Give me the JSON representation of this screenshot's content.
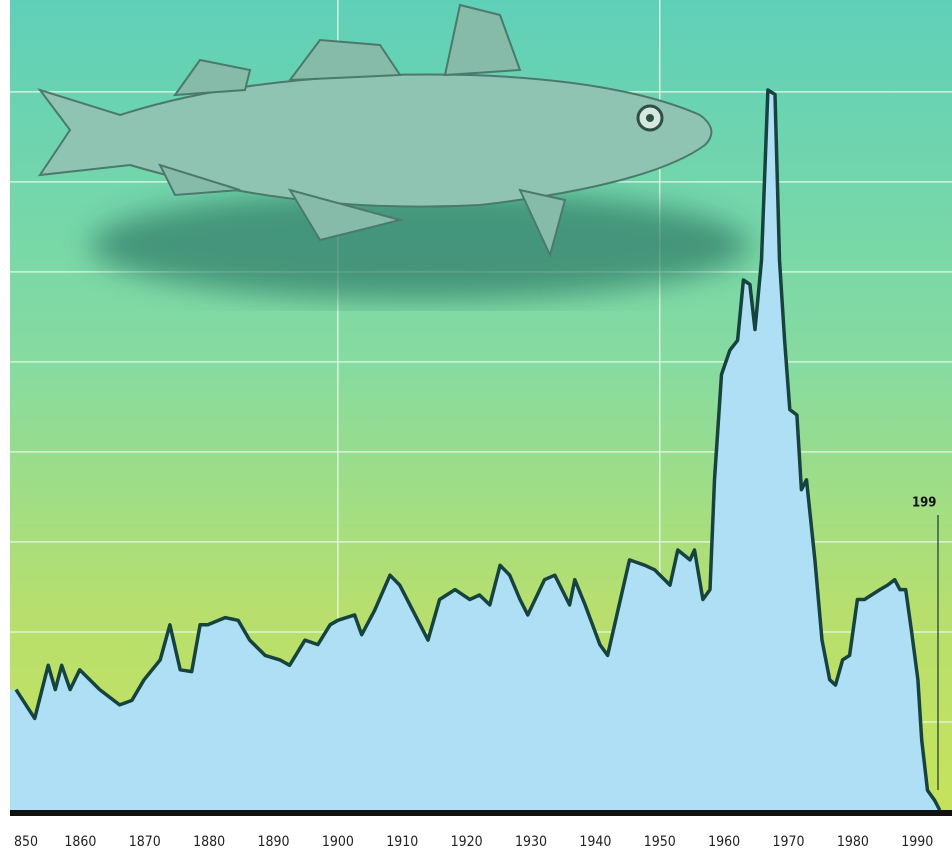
{
  "chart_data": {
    "type": "area",
    "x": [
      1850,
      1852.9,
      1855,
      1856.1,
      1857.1,
      1858.4,
      1859.9,
      1863,
      1866.1,
      1868,
      1869.9,
      1872.4,
      1873.9,
      1875.5,
      1877.3,
      1878.6,
      1879.8,
      1882.5,
      1884.5,
      1886.3,
      1888.7,
      1891,
      1892.5,
      1894.9,
      1896.9,
      1898.8,
      1900,
      1902.6,
      1903.7,
      1905.7,
      1908.1,
      1909.6,
      1912,
      1914,
      1915.8,
      1918.2,
      1920.5,
      1922,
      1923.6,
      1925.2,
      1926.7,
      1928.3,
      1929.5,
      1932.1,
      1933.7,
      1936,
      1936.8,
      1938.4,
      1940.7,
      1941.9,
      1945.3,
      1947.7,
      1949.2,
      1951.6,
      1952.8,
      1954.7,
      1955.4,
      1956.7,
      1957.8,
      1958.5,
      1959.6,
      1960.9,
      1962.1,
      1963,
      1964,
      1964.8,
      1965.8,
      1966.8,
      1967.9,
      1968.6,
      1969.4,
      1970.2,
      1971.3,
      1972,
      1972.8,
      1974.1,
      1975.2,
      1976.4,
      1977.3,
      1978.4,
      1979.5,
      1980.7,
      1981.8,
      1982.9,
      1984.2,
      1985.4,
      1986.5,
      1987.3,
      1988.2,
      1989.1,
      1990.1,
      1990.7,
      1991.6,
      1992.7,
      1993.5
    ],
    "values": [
      1.36,
      1.04,
      1.63,
      1.36,
      1.63,
      1.36,
      1.58,
      1.36,
      1.19,
      1.24,
      1.47,
      1.69,
      2.08,
      1.58,
      1.56,
      2.08,
      2.08,
      2.16,
      2.13,
      1.91,
      1.74,
      1.69,
      1.63,
      1.91,
      1.86,
      2.08,
      2.13,
      2.19,
      1.97,
      2.24,
      2.63,
      2.52,
      2.19,
      1.91,
      2.36,
      2.47,
      2.36,
      2.41,
      2.3,
      2.74,
      2.63,
      2.36,
      2.19,
      2.58,
      2.63,
      2.3,
      2.58,
      2.3,
      1.86,
      1.74,
      2.8,
      2.74,
      2.69,
      2.52,
      2.91,
      2.8,
      2.91,
      2.36,
      2.47,
      3.69,
      4.86,
      5.13,
      5.24,
      5.91,
      5.86,
      5.36,
      6.13,
      8.02,
      7.97,
      6.13,
      5.24,
      4.47,
      4.41,
      3.58,
      3.69,
      2.8,
      1.91,
      1.47,
      1.41,
      1.69,
      1.74,
      2.36,
      2.36,
      2.41,
      2.47,
      2.52,
      2.58,
      2.47,
      2.47,
      2.02,
      1.47,
      0.8,
      0.24,
      0.13,
      0.02
    ],
    "color": "#17433f",
    "fill": "#aedff5",
    "xlim": [
      1850,
      1995.4
    ],
    "ylim": [
      0,
      9.02
    ],
    "xticks": [
      {
        "value": 1850,
        "label": "850"
      },
      1860,
      1870,
      1880,
      1890,
      1900,
      1910,
      1920,
      1930,
      1940,
      1950,
      1960,
      1970,
      1980,
      1990
    ],
    "yticks": [
      1,
      2,
      3,
      4,
      5,
      6,
      7,
      8
    ],
    "xgrid": [
      1900,
      1950
    ],
    "grid": true,
    "annotation": "199"
  }
}
